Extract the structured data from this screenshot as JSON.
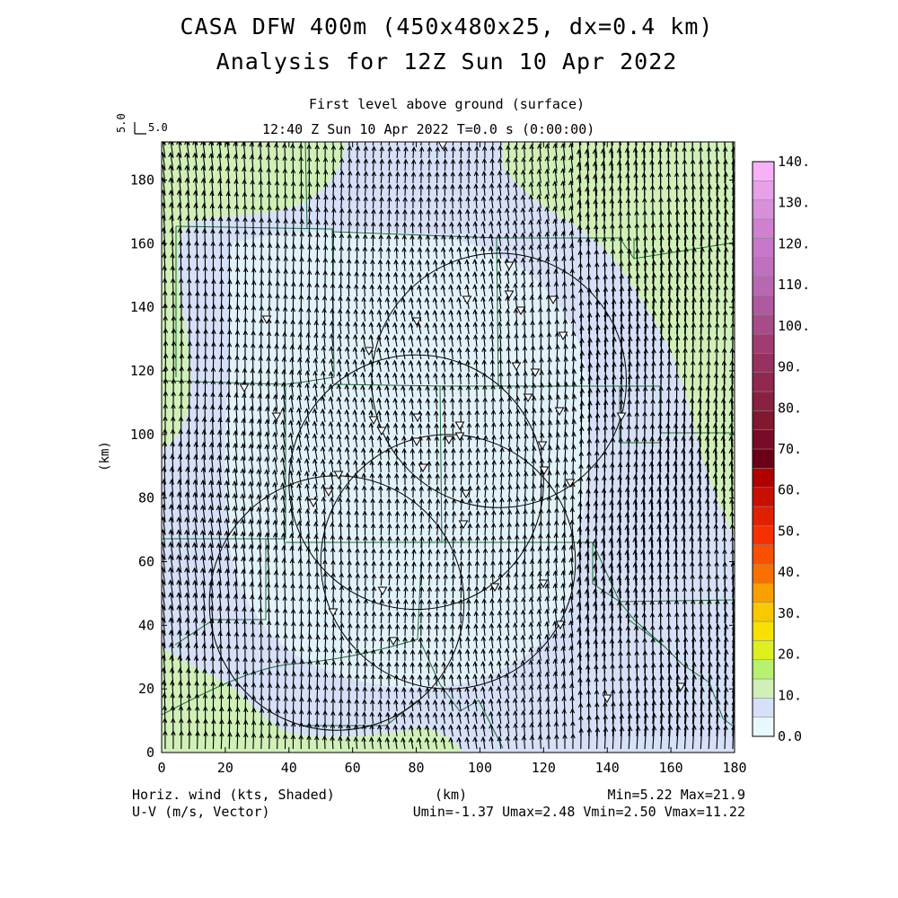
{
  "header": {
    "title_line1": "CASA DFW 400m (450x480x25, dx=0.4 km)",
    "title_line2": "Analysis for 12Z Sun 10 Apr 2022",
    "subtitle": "First level above ground (surface)",
    "time_line": "12:40 Z Sun 10 Apr 2022    T=0.0 s (0:00:00)",
    "ref_vector_label": "5.0",
    "ref_vector_value": "5.0"
  },
  "footer": {
    "field_label": "Horiz. wind (kts, Shaded)",
    "vector_label": "U-V (m/s, Vector)",
    "xunit": "(km)",
    "minmax": "Min=5.22 Max=21.9",
    "uv_range": "Umin=-1.37 Umax=2.48 Vmin=2.50 Vmax=11.22"
  },
  "chart_data": {
    "type": "heatmap",
    "title": "CASA DFW 400m (450x480x25, dx=0.4 km)",
    "subtitle": "Analysis for 12Z Sun 10 Apr 2022",
    "xlabel": "",
    "ylabel": "(km)",
    "xlim": [
      0,
      180
    ],
    "ylim": [
      0,
      192
    ],
    "x_ticks": [
      0,
      20,
      40,
      60,
      80,
      100,
      120,
      140,
      160,
      180
    ],
    "y_ticks": [
      0,
      20,
      40,
      60,
      80,
      100,
      120,
      140,
      160,
      180
    ],
    "colorbar": {
      "ticks": [
        "0.0",
        "10.",
        "20.",
        "30.",
        "40.",
        "50.",
        "60.",
        "70.",
        "80.",
        "90.",
        "100.",
        "110.",
        "120.",
        "130.",
        "140."
      ],
      "levels": [
        "#e8f8ff",
        "#d6e0f8",
        "#d0f0b8",
        "#b8f070",
        "#dcf020",
        "#f8e000",
        "#f8c800",
        "#f8a000",
        "#f87000",
        "#f85000",
        "#f83000",
        "#e02000",
        "#c81000",
        "#b00000",
        "#6a0018",
        "#780c28",
        "#821830",
        "#8a2040",
        "#902850",
        "#983060",
        "#a03c70",
        "#a84c88",
        "#b058a0",
        "#b868b0",
        "#c070c0",
        "#c878c8",
        "#d080d0",
        "#d890d8",
        "#e8a0e8",
        "#f8b0f8"
      ]
    },
    "shading_regions": [
      {
        "name": "upper-left",
        "level_kts": "15-20"
      },
      {
        "name": "upper-right",
        "level_kts": "15-20"
      },
      {
        "name": "lower-left",
        "level_kts": "15-20"
      },
      {
        "name": "center",
        "level_kts": "5-10"
      },
      {
        "name": "background",
        "level_kts": "10-15"
      }
    ],
    "radar_rings": [
      {
        "x": 55,
        "y": 47,
        "r": 40
      },
      {
        "x": 80,
        "y": 85,
        "r": 40
      },
      {
        "x": 90,
        "y": 60,
        "r": 40
      },
      {
        "x": 106,
        "y": 117,
        "r": 40
      }
    ],
    "stats": {
      "min": 5.22,
      "max": 21.9,
      "umin": -1.37,
      "umax": 2.48,
      "vmin": 2.5,
      "vmax": 11.22
    },
    "vector_dir": "southerly (arrows pointing north)"
  }
}
